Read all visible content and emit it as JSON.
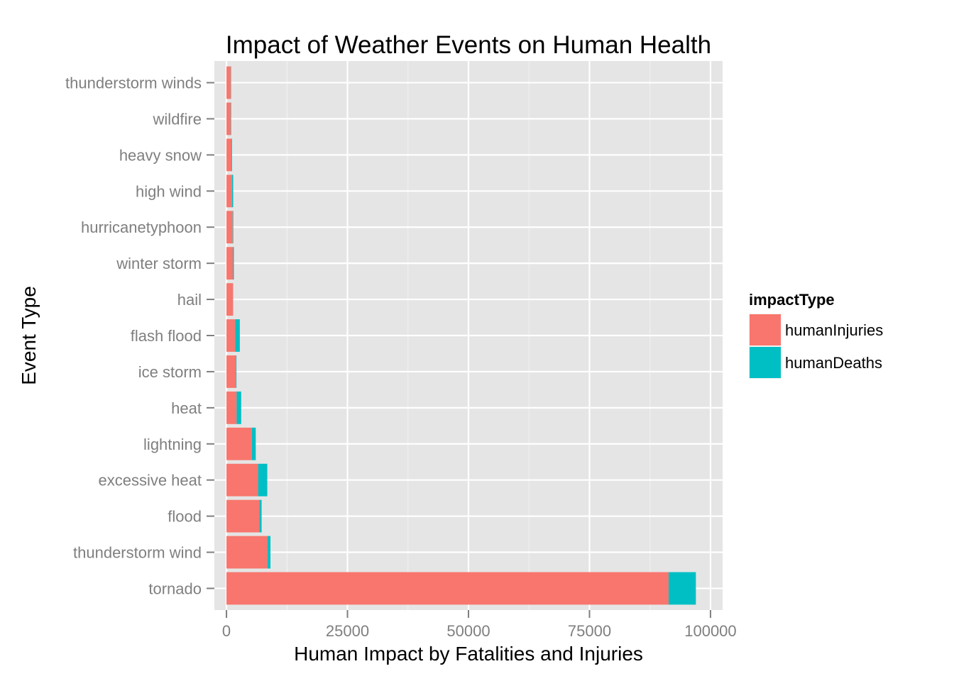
{
  "chart_data": {
    "type": "bar",
    "orientation": "horizontal",
    "stacked": true,
    "title": "Impact of Weather Events on Human Health",
    "xlabel": "Human Impact by Fatalities and Injuries",
    "ylabel": "Event Type",
    "xlim": [
      -2500,
      102500
    ],
    "xticks": [
      0,
      25000,
      50000,
      75000,
      100000
    ],
    "xtick_labels": [
      "0",
      "25000",
      "50000",
      "75000",
      "100000"
    ],
    "categories": [
      "tornado",
      "thunderstorm wind",
      "flood",
      "excessive heat",
      "lightning",
      "heat",
      "ice storm",
      "flash flood",
      "hail",
      "winter storm",
      "hurricanetyphoon",
      "high wind",
      "heavy snow",
      "wildfire",
      "thunderstorm winds"
    ],
    "series": [
      {
        "name": "humanInjuries",
        "color": "#F8766D",
        "values": [
          91350,
          8450,
          6790,
          6530,
          5230,
          2100,
          1980,
          1780,
          1360,
          1320,
          1280,
          1140,
          1020,
          910,
          910
        ]
      },
      {
        "name": "humanDeaths",
        "color": "#00BFC4",
        "values": [
          5630,
          640,
          470,
          1900,
          820,
          940,
          90,
          980,
          20,
          210,
          130,
          250,
          130,
          80,
          60
        ]
      }
    ],
    "legend": {
      "title": "impactType",
      "position": "right",
      "entries": [
        "humanInjuries",
        "humanDeaths"
      ]
    },
    "grid": true,
    "background": "#E5E5E5",
    "grid_color": "#FFFFFF"
  }
}
